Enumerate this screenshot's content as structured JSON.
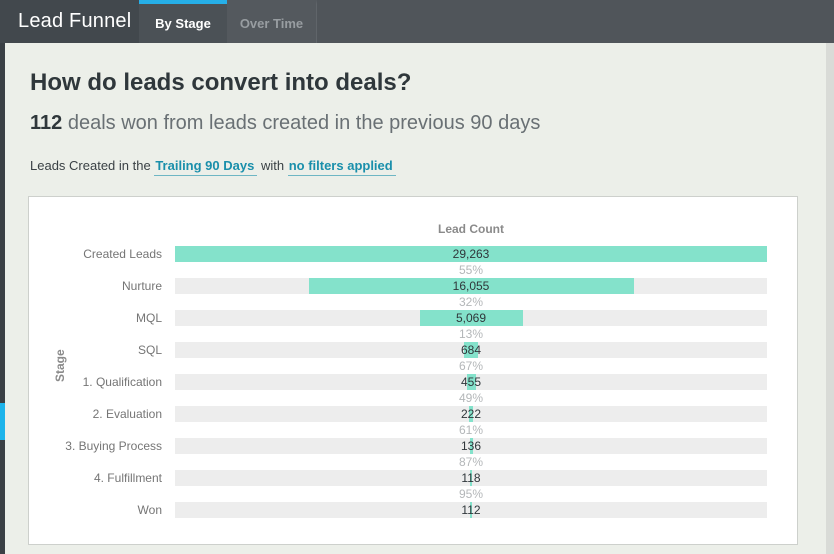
{
  "header": {
    "app_title": "Lead Funnel",
    "tabs": [
      {
        "label": "By Stage",
        "active": true
      },
      {
        "label": "Over Time",
        "active": false
      }
    ]
  },
  "question": {
    "title": "How do leads convert into deals?",
    "metric_value": "112",
    "metric_text": "deals won from leads created in the previous 90 days"
  },
  "filters": {
    "prefix": "Leads Created in the",
    "date_range_link": "Trailing 90 Days",
    "middle": "with",
    "filters_link": "no filters applied"
  },
  "colors": {
    "accent_cyan": "#26afe8",
    "link_teal": "#1a8fab",
    "bar_teal": "#84e2cb",
    "track_gray": "#ededed"
  },
  "chart_data": {
    "type": "bar",
    "orientation": "horizontal",
    "style": "centered-funnel",
    "title": "Lead Count",
    "ylabel": "Stage",
    "categories": [
      "Created Leads",
      "Nurture",
      "MQL",
      "SQL",
      "1. Qualification",
      "2. Evaluation",
      "3. Buying Process",
      "4. Fulfillment",
      "Won"
    ],
    "values": [
      29263,
      16055,
      5069,
      684,
      455,
      222,
      136,
      118,
      112
    ],
    "value_labels": [
      "29,263",
      "16,055",
      "5,069",
      "684",
      "455",
      "222",
      "136",
      "118",
      "112"
    ],
    "conversion_percents": [
      "55%",
      "32%",
      "13%",
      "67%",
      "49%",
      "61%",
      "87%",
      "95%"
    ],
    "max_value": 29263,
    "xlim": [
      0,
      29263
    ],
    "grid": false,
    "legend": false
  }
}
